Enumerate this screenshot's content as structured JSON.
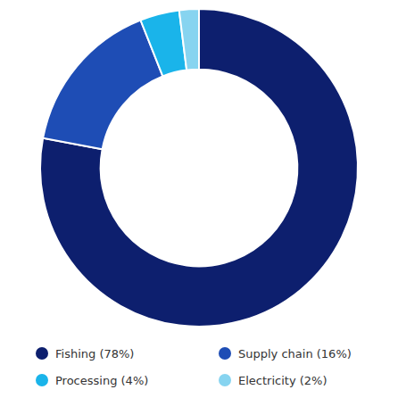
{
  "chart_data": {
    "type": "donut",
    "categories": [
      "Fishing (78%)",
      "Supply chain (16%)",
      "Processing (4%)",
      "Electricity (2%)"
    ],
    "values": [
      78,
      16,
      4,
      2
    ],
    "colors": [
      "#0d1f6e",
      "#1e4db5",
      "#1ab4ea",
      "#87d4f0"
    ],
    "legend": "bottom"
  }
}
